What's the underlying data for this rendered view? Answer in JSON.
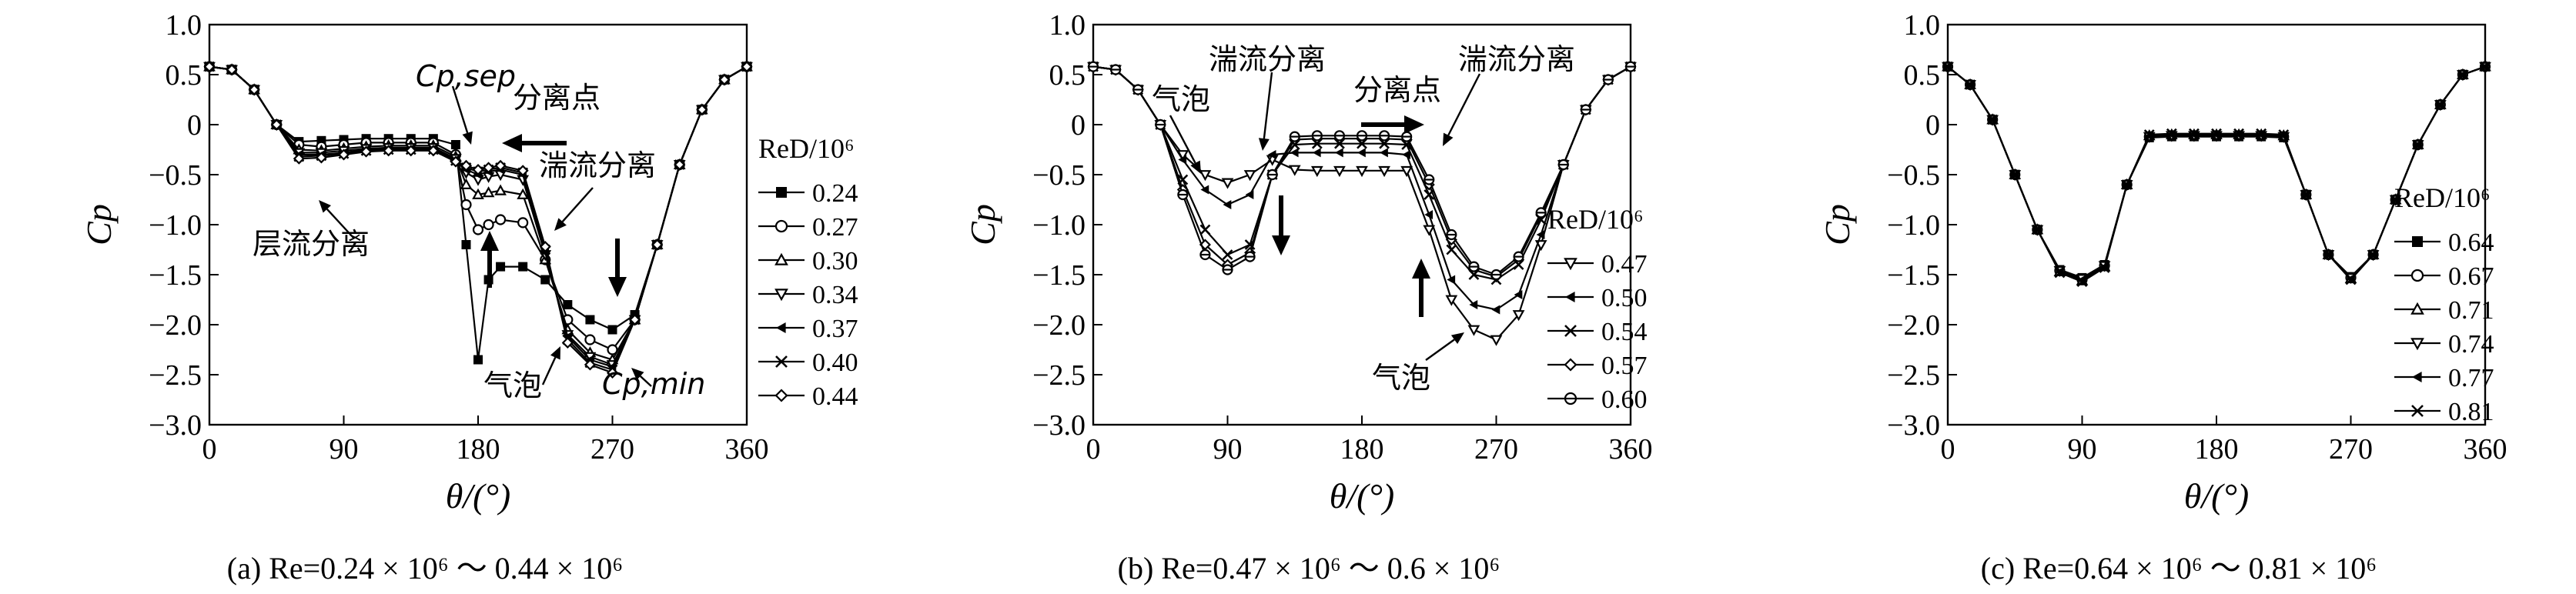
{
  "figure": {
    "captions": [
      "(a) Re=0.24 × 10⁶ ～ 0.44 × 10⁶",
      "(b) Re=0.47 × 10⁶ ～ 0.6 × 10⁶",
      "(c) Re=0.64 × 10⁶ ～ 0.81 × 10⁶"
    ]
  },
  "chart_data": [
    {
      "type": "line",
      "panel": "a",
      "xlabel": "θ/(°)",
      "ylabel": "Cp",
      "xlim": [
        0,
        360
      ],
      "ylim": [
        -3.0,
        1.0
      ],
      "xticks": [
        0,
        90,
        180,
        270,
        360
      ],
      "yticks": [
        1.0,
        0.5,
        0,
        -0.5,
        -1.0,
        -1.5,
        -2.0,
        -2.5,
        -3.0
      ],
      "ytick_labels": [
        "1.0",
        "0.5",
        "0",
        "−0.5",
        "−1.0",
        "−1.5",
        "−2.0",
        "−2.5",
        "−3.0"
      ],
      "legend_title": "ReD/10⁶",
      "legend_position": "right",
      "x": [
        0,
        15,
        30,
        45,
        60,
        75,
        90,
        105,
        120,
        135,
        150,
        165,
        172,
        180,
        187,
        195,
        210,
        225,
        240,
        255,
        270,
        285,
        300,
        315,
        330,
        345,
        360
      ],
      "series": [
        {
          "name": "0.24",
          "marker": "square-filled",
          "values": [
            0.58,
            0.55,
            0.35,
            0.0,
            -0.17,
            -0.16,
            -0.15,
            -0.14,
            -0.14,
            -0.14,
            -0.14,
            -0.2,
            -1.2,
            -2.35,
            -1.55,
            -1.42,
            -1.42,
            -1.55,
            -1.8,
            -1.95,
            -2.05,
            -1.9,
            -1.2,
            -0.4,
            0.15,
            0.45,
            0.58
          ]
        },
        {
          "name": "0.27",
          "marker": "circle-open",
          "values": [
            0.58,
            0.55,
            0.35,
            0.0,
            -0.2,
            -0.22,
            -0.2,
            -0.18,
            -0.18,
            -0.18,
            -0.18,
            -0.3,
            -0.8,
            -1.05,
            -1.0,
            -0.95,
            -0.98,
            -1.35,
            -1.95,
            -2.15,
            -2.25,
            -1.95,
            -1.2,
            -0.4,
            0.15,
            0.45,
            0.58
          ]
        },
        {
          "name": "0.30",
          "marker": "triangle-open",
          "values": [
            0.58,
            0.55,
            0.35,
            0.0,
            -0.25,
            -0.26,
            -0.24,
            -0.22,
            -0.21,
            -0.21,
            -0.21,
            -0.32,
            -0.6,
            -0.7,
            -0.68,
            -0.66,
            -0.7,
            -1.35,
            -2.05,
            -2.28,
            -2.35,
            -1.95,
            -1.2,
            -0.4,
            0.15,
            0.45,
            0.58
          ]
        },
        {
          "name": "0.34",
          "marker": "triangle-down-open",
          "values": [
            0.58,
            0.55,
            0.35,
            0.0,
            -0.28,
            -0.28,
            -0.26,
            -0.24,
            -0.23,
            -0.23,
            -0.23,
            -0.34,
            -0.48,
            -0.55,
            -0.52,
            -0.5,
            -0.55,
            -1.3,
            -2.1,
            -2.32,
            -2.4,
            -1.95,
            -1.2,
            -0.4,
            0.15,
            0.45,
            0.58
          ]
        },
        {
          "name": "0.37",
          "marker": "triangle-left-filled",
          "values": [
            0.58,
            0.55,
            0.35,
            0.0,
            -0.3,
            -0.3,
            -0.28,
            -0.25,
            -0.24,
            -0.24,
            -0.24,
            -0.35,
            -0.45,
            -0.5,
            -0.47,
            -0.45,
            -0.5,
            -1.28,
            -2.12,
            -2.35,
            -2.42,
            -1.95,
            -1.2,
            -0.4,
            0.15,
            0.45,
            0.58
          ]
        },
        {
          "name": "0.40",
          "marker": "cross",
          "values": [
            0.58,
            0.55,
            0.35,
            0.0,
            -0.32,
            -0.31,
            -0.29,
            -0.26,
            -0.25,
            -0.25,
            -0.25,
            -0.36,
            -0.43,
            -0.47,
            -0.45,
            -0.43,
            -0.48,
            -1.25,
            -2.15,
            -2.38,
            -2.45,
            -1.95,
            -1.2,
            -0.4,
            0.15,
            0.45,
            0.58
          ]
        },
        {
          "name": "0.44",
          "marker": "diamond-open",
          "values": [
            0.58,
            0.55,
            0.35,
            0.0,
            -0.34,
            -0.33,
            -0.3,
            -0.27,
            -0.26,
            -0.26,
            -0.26,
            -0.37,
            -0.41,
            -0.45,
            -0.43,
            -0.41,
            -0.46,
            -1.22,
            -2.18,
            -2.4,
            -2.48,
            -1.95,
            -1.2,
            -0.4,
            0.15,
            0.45,
            0.58
          ]
        }
      ],
      "annotations": [
        "Cp,sep",
        "分离点",
        "湍流分离",
        "层流分离",
        "气泡",
        "Cp,min"
      ]
    },
    {
      "type": "line",
      "panel": "b",
      "xlabel": "θ/(°)",
      "ylabel": "Cp",
      "xlim": [
        0,
        360
      ],
      "ylim": [
        -3.0,
        1.0
      ],
      "xticks": [
        0,
        90,
        180,
        270,
        360
      ],
      "yticks": [
        1.0,
        0.5,
        0,
        -0.5,
        -1.0,
        -1.5,
        -2.0,
        -2.5,
        -3.0
      ],
      "ytick_labels": [
        "1.0",
        "0.5",
        "0",
        "−0.5",
        "−1.0",
        "−1.5",
        "−2.0",
        "−2.5",
        "−3.0"
      ],
      "legend_title": "ReD/10⁶",
      "legend_position": "right",
      "x": [
        0,
        15,
        30,
        45,
        60,
        75,
        90,
        105,
        120,
        135,
        150,
        165,
        180,
        195,
        210,
        225,
        240,
        255,
        270,
        285,
        300,
        315,
        330,
        345,
        360
      ],
      "series": [
        {
          "name": "0.47",
          "marker": "triangle-down-open",
          "values": [
            0.58,
            0.55,
            0.35,
            0.0,
            -0.3,
            -0.5,
            -0.58,
            -0.5,
            -0.35,
            -0.45,
            -0.46,
            -0.46,
            -0.46,
            -0.46,
            -0.46,
            -1.05,
            -1.75,
            -2.05,
            -2.15,
            -1.9,
            -1.2,
            -0.4,
            0.15,
            0.45,
            0.58
          ]
        },
        {
          "name": "0.50",
          "marker": "triangle-left-filled",
          "values": [
            0.58,
            0.55,
            0.35,
            0.0,
            -0.35,
            -0.65,
            -0.8,
            -0.7,
            -0.3,
            -0.28,
            -0.28,
            -0.28,
            -0.28,
            -0.28,
            -0.3,
            -0.9,
            -1.55,
            -1.8,
            -1.85,
            -1.7,
            -1.1,
            -0.4,
            0.15,
            0.45,
            0.58
          ]
        },
        {
          "name": "0.54",
          "marker": "cross",
          "values": [
            0.58,
            0.55,
            0.35,
            0.0,
            -0.55,
            -1.05,
            -1.3,
            -1.2,
            -0.5,
            -0.2,
            -0.19,
            -0.19,
            -0.19,
            -0.19,
            -0.2,
            -0.7,
            -1.25,
            -1.5,
            -1.55,
            -1.4,
            -0.95,
            -0.4,
            0.15,
            0.45,
            0.58
          ]
        },
        {
          "name": "0.57",
          "marker": "diamond-open",
          "values": [
            0.58,
            0.55,
            0.35,
            0.0,
            -0.65,
            -1.2,
            -1.4,
            -1.28,
            -0.5,
            -0.15,
            -0.14,
            -0.14,
            -0.14,
            -0.14,
            -0.15,
            -0.6,
            -1.15,
            -1.45,
            -1.52,
            -1.35,
            -0.9,
            -0.4,
            0.15,
            0.45,
            0.58
          ]
        },
        {
          "name": "0.60",
          "marker": "circle-crossed",
          "values": [
            0.58,
            0.55,
            0.35,
            0.0,
            -0.7,
            -1.3,
            -1.45,
            -1.32,
            -0.5,
            -0.12,
            -0.11,
            -0.11,
            -0.11,
            -0.11,
            -0.12,
            -0.55,
            -1.1,
            -1.42,
            -1.5,
            -1.32,
            -0.88,
            -0.4,
            0.15,
            0.45,
            0.58
          ]
        }
      ],
      "annotations": [
        "湍流分离",
        "分离点",
        "湍流分离",
        "气泡",
        "气泡"
      ]
    },
    {
      "type": "line",
      "panel": "c",
      "xlabel": "θ/(°)",
      "ylabel": "Cp",
      "xlim": [
        0,
        360
      ],
      "ylim": [
        -3.0,
        1.0
      ],
      "xticks": [
        0,
        90,
        180,
        270,
        360
      ],
      "yticks": [
        1.0,
        0.5,
        0,
        -0.5,
        -1.0,
        -1.5,
        -2.0,
        -2.5,
        -3.0
      ],
      "ytick_labels": [
        "1.0",
        "0.5",
        "0",
        "−0.5",
        "−1.0",
        "−1.5",
        "−2.0",
        "−2.5",
        "−3.0"
      ],
      "legend_title": "ReD/10⁶",
      "legend_position": "right",
      "x": [
        0,
        15,
        30,
        45,
        60,
        75,
        90,
        105,
        120,
        135,
        150,
        165,
        180,
        195,
        210,
        225,
        240,
        255,
        270,
        285,
        300,
        315,
        330,
        345,
        360
      ],
      "series": [
        {
          "name": "0.64",
          "marker": "square-filled",
          "values": [
            0.58,
            0.4,
            0.05,
            -0.5,
            -1.05,
            -1.45,
            -1.53,
            -1.4,
            -0.6,
            -0.13,
            -0.12,
            -0.12,
            -0.12,
            -0.12,
            -0.12,
            -0.13,
            -0.7,
            -1.3,
            -1.52,
            -1.3,
            -0.75,
            -0.2,
            0.2,
            0.5,
            0.58
          ]
        },
        {
          "name": "0.67",
          "marker": "circle-open",
          "values": [
            0.58,
            0.4,
            0.05,
            -0.5,
            -1.05,
            -1.46,
            -1.55,
            -1.41,
            -0.6,
            -0.12,
            -0.11,
            -0.11,
            -0.11,
            -0.11,
            -0.11,
            -0.12,
            -0.7,
            -1.3,
            -1.53,
            -1.3,
            -0.75,
            -0.2,
            0.2,
            0.5,
            0.58
          ]
        },
        {
          "name": "0.71",
          "marker": "triangle-open",
          "values": [
            0.58,
            0.4,
            0.05,
            -0.5,
            -1.05,
            -1.47,
            -1.56,
            -1.42,
            -0.6,
            -0.11,
            -0.1,
            -0.1,
            -0.1,
            -0.1,
            -0.1,
            -0.11,
            -0.7,
            -1.3,
            -1.54,
            -1.3,
            -0.75,
            -0.2,
            0.2,
            0.5,
            0.58
          ]
        },
        {
          "name": "0.74",
          "marker": "triangle-down-open",
          "values": [
            0.58,
            0.4,
            0.05,
            -0.5,
            -1.05,
            -1.46,
            -1.54,
            -1.41,
            -0.6,
            -0.12,
            -0.11,
            -0.11,
            -0.11,
            -0.11,
            -0.11,
            -0.12,
            -0.7,
            -1.3,
            -1.53,
            -1.3,
            -0.75,
            -0.2,
            0.2,
            0.5,
            0.58
          ]
        },
        {
          "name": "0.77",
          "marker": "triangle-left-filled",
          "values": [
            0.58,
            0.4,
            0.05,
            -0.5,
            -1.05,
            -1.47,
            -1.55,
            -1.42,
            -0.6,
            -0.11,
            -0.1,
            -0.1,
            -0.1,
            -0.1,
            -0.1,
            -0.11,
            -0.7,
            -1.3,
            -1.54,
            -1.3,
            -0.75,
            -0.2,
            0.2,
            0.5,
            0.58
          ]
        },
        {
          "name": "0.81",
          "marker": "cross",
          "values": [
            0.58,
            0.4,
            0.05,
            -0.5,
            -1.05,
            -1.48,
            -1.57,
            -1.43,
            -0.6,
            -0.1,
            -0.09,
            -0.09,
            -0.09,
            -0.09,
            -0.09,
            -0.1,
            -0.7,
            -1.3,
            -1.55,
            -1.3,
            -0.75,
            -0.2,
            0.2,
            0.5,
            0.58
          ]
        }
      ],
      "annotations": []
    }
  ]
}
